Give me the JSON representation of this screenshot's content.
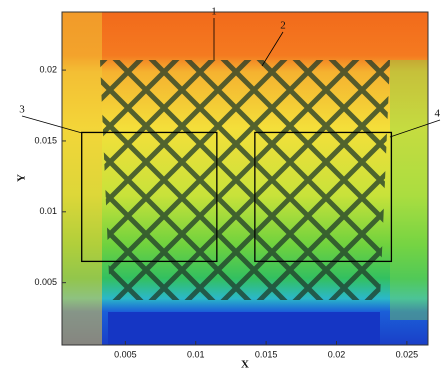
{
  "chart_data": {
    "type": "contour",
    "xlabel": "X",
    "ylabel": "Y",
    "xlim": [
      0.0005,
      0.0265
    ],
    "ylim": [
      0.0006,
      0.0241
    ],
    "xticks": [
      0.005,
      0.01,
      0.015,
      0.02,
      0.025
    ],
    "yticks": [
      0.005,
      0.01,
      0.015,
      0.02
    ],
    "annotations": [
      "1",
      "2",
      "3",
      "4"
    ],
    "boxes": [
      [
        0.0019,
        0.0065,
        0.0115,
        0.0156
      ],
      [
        0.0142,
        0.0065,
        0.0239,
        0.0156
      ]
    ]
  }
}
